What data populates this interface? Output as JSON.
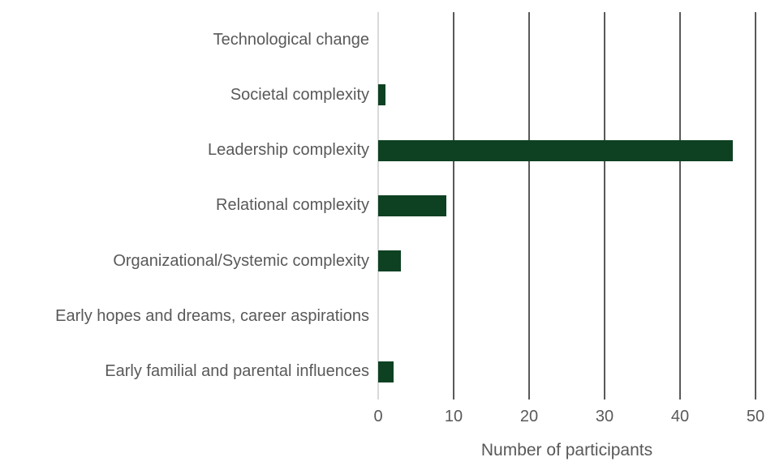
{
  "chart_data": {
    "type": "bar",
    "orientation": "horizontal",
    "title": "",
    "categories": [
      "Technological change",
      "Societal complexity",
      "Leadership complexity",
      "Relational complexity",
      "Organizational/Systemic complexity",
      "Early hopes and dreams, career aspirations",
      "Early familial and parental influences"
    ],
    "values": [
      0,
      1,
      47,
      9,
      3,
      0,
      2
    ],
    "xlabel": "Number of participants",
    "ylabel": "",
    "xlim": [
      0,
      50
    ],
    "xticks": [
      0,
      10,
      20,
      30,
      40,
      50
    ],
    "grid": true,
    "legend": false,
    "colors": {
      "bar": "#0d4122",
      "gridline": "#595959",
      "zero_axis_line": "#d9d9d9",
      "text": "#595959",
      "background": "#ffffff"
    }
  }
}
